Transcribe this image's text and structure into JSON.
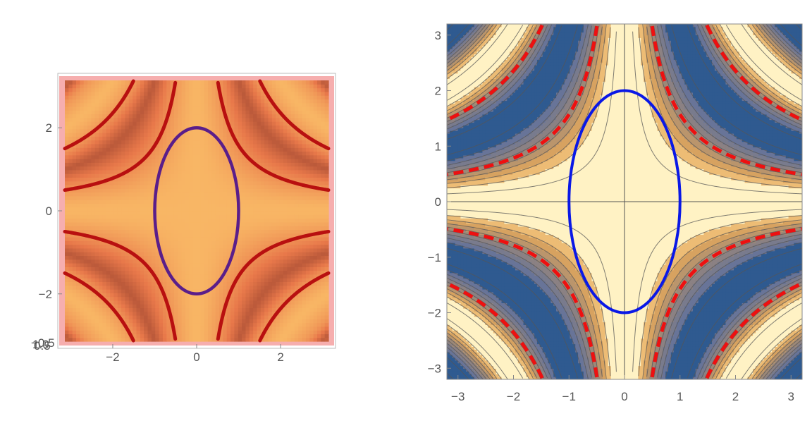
{
  "chart_data": [
    {
      "type": "heatmap",
      "view": "3d-surface-top-view",
      "title": "",
      "xlabel": "",
      "ylabel": "",
      "xlim": [
        -3.14159,
        3.14159
      ],
      "ylim": [
        -3.14159,
        3.14159
      ],
      "x_ticks": [
        "−2",
        "0",
        "2"
      ],
      "x_tick_values": [
        -2,
        0,
        2
      ],
      "y_ticks": [
        "−2",
        "0",
        "2"
      ],
      "y_tick_values": [
        -2,
        0,
        2
      ],
      "z_axis_label_fragments": [
        "−0.5",
        "1.0",
        "0.5"
      ],
      "surface_function": "cos(x*y)",
      "colors": {
        "surface_low": "#8c3a2a",
        "surface_mid": "#e8784a",
        "surface_high": "#ffd070",
        "box_edge": "#f4a0a0",
        "ellipse": "#5a1e8a",
        "curve": "#b81010"
      },
      "ellipse": {
        "x_radius": 1,
        "y_radius": 2,
        "center": [
          0,
          0
        ]
      },
      "level_curves": [
        {
          "name": "",
          "equation": "x*y = 1.571"
        },
        {
          "name": "",
          "equation": "x*y = -1.571"
        },
        {
          "name": "",
          "equation": "x*y = 4.712"
        },
        {
          "name": "",
          "equation": "x*y = -4.712"
        }
      ]
    },
    {
      "type": "contour",
      "title": "",
      "xlabel": "",
      "ylabel": "",
      "xlim": [
        -3.2,
        3.2
      ],
      "ylim": [
        -3.2,
        3.2
      ],
      "x_ticks": [
        "−3",
        "−2",
        "−1",
        "0",
        "1",
        "2",
        "3"
      ],
      "x_tick_values": [
        -3,
        -2,
        -1,
        0,
        1,
        2,
        3
      ],
      "y_ticks": [
        "−3",
        "−2",
        "−1",
        "0",
        "1",
        "2",
        "3"
      ],
      "y_tick_values": [
        -3,
        -2,
        -1,
        0,
        1,
        2,
        3
      ],
      "contour_function": "cos(x*y)",
      "contour_levels": [
        -0.9,
        -0.7,
        -0.5,
        -0.3,
        -0.1,
        0.1,
        0.3,
        0.5,
        0.7,
        0.9
      ],
      "colors": {
        "low": "#2f5a90",
        "mid": "#8c7e78",
        "high": "#fff2c4",
        "ellipse": "#0a18e6",
        "curve": "#ee1010",
        "contour_line": "#555555"
      },
      "ellipse": {
        "x_radius": 1,
        "y_radius": 2,
        "center": [
          0,
          0
        ]
      },
      "level_curves": [
        {
          "name": "",
          "equation": "x*y = 1.571"
        },
        {
          "name": "",
          "equation": "x*y = -1.571"
        },
        {
          "name": "",
          "equation": "x*y = 4.712"
        },
        {
          "name": "",
          "equation": "x*y = -4.712"
        }
      ]
    }
  ]
}
